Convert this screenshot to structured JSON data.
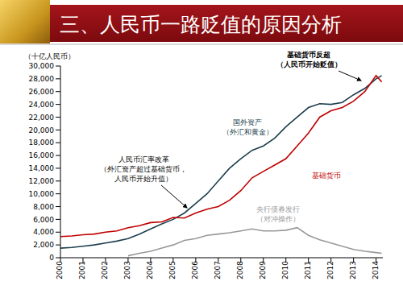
{
  "chart_data": {
    "type": "line",
    "title": "三、人民币一路贬值的原因分析",
    "y_label": "（十亿人民币）",
    "x": [
      2000,
      2000.5,
      2001,
      2001.5,
      2002,
      2002.5,
      2003,
      2003.5,
      2004,
      2004.5,
      2005,
      2005.5,
      2006,
      2006.5,
      2007,
      2007.5,
      2008,
      2008.5,
      2009,
      2009.5,
      2010,
      2010.5,
      2011,
      2011.5,
      2012,
      2012.5,
      2013,
      2013.5,
      2014,
      2014.25
    ],
    "series": [
      {
        "name": "国外资产",
        "annotation": "（外汇和黄金）",
        "color": "#1d3f4e",
        "values": [
          1500,
          1600,
          1800,
          2000,
          2300,
          2600,
          3000,
          3700,
          4500,
          5300,
          6000,
          7000,
          8500,
          10000,
          12000,
          14000,
          15500,
          16800,
          17500,
          18700,
          20500,
          22000,
          23500,
          24100,
          24000,
          24300,
          25500,
          26500,
          28000,
          28500
        ]
      },
      {
        "name": "基础货币",
        "color": "#c00000",
        "values": [
          3300,
          3400,
          3600,
          3700,
          4000,
          4200,
          4700,
          5000,
          5500,
          5600,
          6300,
          6200,
          7000,
          7600,
          8000,
          9000,
          10500,
          12500,
          13500,
          14500,
          15500,
          17500,
          19500,
          22000,
          23000,
          23500,
          24500,
          26000,
          28500,
          27500
        ]
      },
      {
        "name": "央行债券发行",
        "annotation": "（对冲操作）",
        "color": "#999999",
        "values": [
          null,
          null,
          null,
          null,
          null,
          null,
          300,
          700,
          1000,
          1500,
          2000,
          2700,
          3000,
          3500,
          3700,
          3900,
          4200,
          4500,
          4200,
          4200,
          4300,
          4700,
          3500,
          2800,
          2300,
          1800,
          1300,
          1000,
          800,
          700
        ]
      }
    ],
    "annotations": [
      {
        "text": [
          "基础货币反超",
          "（人民币开始贬值）"
        ]
      },
      {
        "text": [
          "人民币汇率改革",
          "（外汇资产超过基础货币，",
          "人民币开始升值）"
        ]
      }
    ],
    "xlim": [
      2000,
      2014.3
    ],
    "xticks": [
      2000,
      2001,
      2002,
      2003,
      2004,
      2005,
      2006,
      2007,
      2008,
      2009,
      2010,
      2011,
      2012,
      2013,
      2014
    ],
    "ylim": [
      0,
      30000
    ],
    "yticks": [
      0,
      {
        "value": 2000,
        "label": "2,000"
      },
      {
        "value": 4000,
        "label": "4,000"
      },
      {
        "value": 6000,
        "label": "6,000"
      },
      {
        "value": 8000,
        "label": "8,000"
      },
      {
        "value": 10000,
        "label": "10,000"
      },
      {
        "value": 12000,
        "label": "12,000"
      },
      {
        "value": 14000,
        "label": "14,000"
      },
      {
        "value": 16000,
        "label": "16,000"
      },
      {
        "value": 18000,
        "label": "18,000"
      },
      {
        "value": 20000,
        "label": "20,000"
      },
      {
        "value": 22000,
        "label": "22,000"
      },
      {
        "value": 24000,
        "label": "24,000"
      },
      {
        "value": 26000,
        "label": "26,000"
      },
      {
        "value": 28000,
        "label": "28,000"
      },
      {
        "value": 30000,
        "label": "30,000"
      }
    ],
    "grid": false
  }
}
